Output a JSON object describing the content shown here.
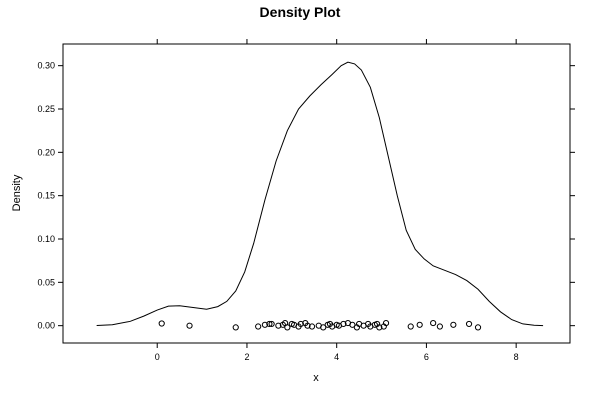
{
  "chart_data": {
    "type": "line",
    "title": "Density Plot",
    "xlabel": "x",
    "ylabel": "Density",
    "xlim": [
      -2.1,
      9.2
    ],
    "ylim": [
      -0.02,
      0.325
    ],
    "x_ticks": [
      0,
      2,
      4,
      6,
      8
    ],
    "x_tick_labels": [
      "0",
      "2",
      "4",
      "6",
      "8"
    ],
    "y_ticks": [
      0.0,
      0.05,
      0.1,
      0.15,
      0.2,
      0.25,
      0.3
    ],
    "y_tick_labels": [
      "0.00",
      "0.05",
      "0.10",
      "0.15",
      "0.20",
      "0.25",
      "0.30"
    ],
    "grid": false,
    "series": [
      {
        "x": [
          -1.35,
          -1.0,
          -0.6,
          -0.3,
          0.0,
          0.25,
          0.5,
          0.8,
          1.1,
          1.35,
          1.55,
          1.75,
          1.95,
          2.15,
          2.4,
          2.65,
          2.9,
          3.15,
          3.4,
          3.65,
          3.9,
          4.1,
          4.25,
          4.4,
          4.55,
          4.75,
          4.95,
          5.15,
          5.35,
          5.55,
          5.75,
          5.95,
          6.15,
          6.4,
          6.65,
          6.9,
          7.15,
          7.4,
          7.65,
          7.9,
          8.15,
          8.4,
          8.6
        ],
        "y": [
          0.0002,
          0.001,
          0.005,
          0.011,
          0.018,
          0.0225,
          0.023,
          0.021,
          0.019,
          0.022,
          0.028,
          0.04,
          0.062,
          0.095,
          0.145,
          0.19,
          0.225,
          0.25,
          0.265,
          0.278,
          0.29,
          0.3,
          0.304,
          0.302,
          0.295,
          0.275,
          0.24,
          0.195,
          0.15,
          0.11,
          0.088,
          0.077,
          0.069,
          0.064,
          0.059,
          0.052,
          0.042,
          0.028,
          0.016,
          0.007,
          0.002,
          0.0005,
          0.0001
        ]
      }
    ],
    "rug_points": [
      {
        "x": 0.1,
        "y": 0.0025
      },
      {
        "x": 0.72,
        "y": 0.0
      },
      {
        "x": 1.75,
        "y": -0.002
      },
      {
        "x": 2.25,
        "y": -0.001
      },
      {
        "x": 2.4,
        "y": 0.001
      },
      {
        "x": 2.5,
        "y": 0.002
      },
      {
        "x": 2.55,
        "y": 0.002
      },
      {
        "x": 2.7,
        "y": 0.0
      },
      {
        "x": 2.8,
        "y": 0.001
      },
      {
        "x": 2.85,
        "y": 0.003
      },
      {
        "x": 2.9,
        "y": -0.002
      },
      {
        "x": 3.0,
        "y": 0.002
      },
      {
        "x": 3.05,
        "y": 0.001
      },
      {
        "x": 3.15,
        "y": -0.001
      },
      {
        "x": 3.2,
        "y": 0.002
      },
      {
        "x": 3.3,
        "y": 0.003
      },
      {
        "x": 3.35,
        "y": 0.0
      },
      {
        "x": 3.45,
        "y": -0.001
      },
      {
        "x": 3.6,
        "y": 0.0
      },
      {
        "x": 3.7,
        "y": -0.002
      },
      {
        "x": 3.8,
        "y": 0.001
      },
      {
        "x": 3.85,
        "y": 0.002
      },
      {
        "x": 3.9,
        "y": -0.001
      },
      {
        "x": 4.0,
        "y": 0.001
      },
      {
        "x": 4.05,
        "y": 0.0
      },
      {
        "x": 4.15,
        "y": 0.002
      },
      {
        "x": 4.25,
        "y": 0.003
      },
      {
        "x": 4.35,
        "y": 0.001
      },
      {
        "x": 4.45,
        "y": -0.002
      },
      {
        "x": 4.5,
        "y": 0.002
      },
      {
        "x": 4.6,
        "y": 0.0
      },
      {
        "x": 4.7,
        "y": 0.002
      },
      {
        "x": 4.75,
        "y": -0.001
      },
      {
        "x": 4.85,
        "y": 0.001
      },
      {
        "x": 4.9,
        "y": 0.002
      },
      {
        "x": 4.95,
        "y": -0.002
      },
      {
        "x": 5.05,
        "y": -0.001
      },
      {
        "x": 5.1,
        "y": 0.003
      },
      {
        "x": 5.65,
        "y": -0.001
      },
      {
        "x": 5.85,
        "y": 0.001
      },
      {
        "x": 6.15,
        "y": 0.003
      },
      {
        "x": 6.3,
        "y": -0.001
      },
      {
        "x": 6.6,
        "y": 0.001
      },
      {
        "x": 6.95,
        "y": 0.002
      },
      {
        "x": 7.15,
        "y": -0.002
      }
    ]
  }
}
